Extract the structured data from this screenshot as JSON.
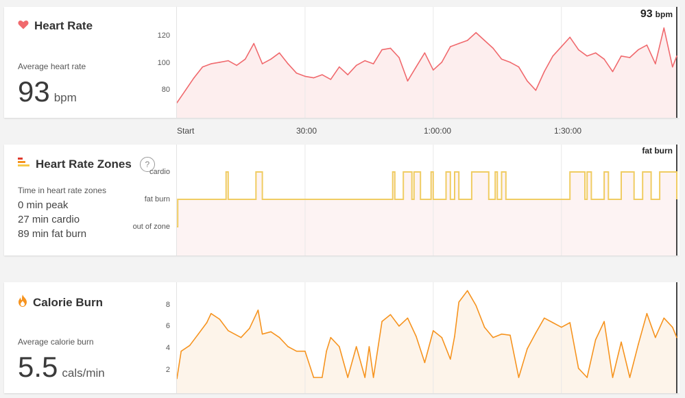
{
  "colors": {
    "heart": "#f0696d",
    "heart_fill": "#fdeeee",
    "zone_line": "#f0cc62",
    "zone_fill": "#fdf3f3",
    "calorie": "#f6931e",
    "calorie_fill": "#fdf4ea",
    "cursor": "#444444"
  },
  "heart_rate": {
    "title": "Heart Rate",
    "icon": "heart-icon",
    "avg_label": "Average heart rate",
    "avg_value": "93",
    "avg_unit": "bpm",
    "readout_value": "93",
    "readout_unit": "bpm",
    "y_ticks": [
      "120",
      "100",
      "80"
    ]
  },
  "zones": {
    "title": "Heart Rate Zones",
    "icon": "zones-bars-icon",
    "help": "?",
    "time_label": "Time in heart rate zones",
    "lines": [
      "0 min peak",
      "27 min cardio",
      "89 min fat burn"
    ],
    "y_ticks": [
      "cardio",
      "fat burn",
      "out of zone"
    ],
    "readout": "fat burn"
  },
  "calories": {
    "title": "Calorie Burn",
    "icon": "flame-icon",
    "avg_label": "Average calorie burn",
    "avg_value": "5.5",
    "avg_unit": "cals/min",
    "y_ticks": [
      "8",
      "6",
      "4",
      "2"
    ]
  },
  "x_axis": {
    "ticks": [
      "Start",
      "30:00",
      "1:00:00",
      "1:30:00"
    ],
    "tick_minutes": [
      0,
      30,
      60,
      90
    ]
  },
  "chart_data": [
    {
      "type": "area",
      "ylabel": "",
      "x_unit": "minutes",
      "xlim": [
        0,
        117
      ],
      "ylim": [
        65,
        130
      ],
      "grid": true,
      "x": [
        0,
        2,
        4,
        6,
        8,
        10,
        12,
        14,
        16,
        18,
        20,
        22,
        24,
        26,
        28,
        30,
        32,
        34,
        36,
        38,
        40,
        42,
        44,
        46,
        48,
        50,
        52,
        54,
        56,
        58,
        60,
        62,
        64,
        66,
        68,
        70,
        72,
        74,
        76,
        78,
        80,
        82,
        84,
        86,
        88,
        90,
        92,
        94,
        96,
        98,
        100,
        102,
        104,
        106,
        108,
        110,
        112,
        114,
        116,
        117
      ],
      "y": [
        72,
        80,
        88,
        95,
        97,
        98,
        99,
        96,
        100,
        110,
        97,
        100,
        104,
        97,
        91,
        89,
        88,
        90,
        87,
        95,
        90,
        96,
        99,
        97,
        106,
        107,
        101,
        86,
        95,
        104,
        93,
        98,
        108,
        110,
        112,
        117,
        112,
        107,
        100,
        98,
        95,
        86,
        80,
        92,
        102,
        108,
        114,
        106,
        102,
        104,
        100,
        92,
        102,
        101,
        106,
        109,
        97,
        120,
        95,
        102
      ]
    },
    {
      "type": "line",
      "ylabel": "",
      "x_unit": "minutes",
      "xlim": [
        0,
        117
      ],
      "y_categories": [
        "out of zone",
        "fat burn",
        "cardio"
      ],
      "x": [
        0,
        0.2,
        11.5,
        12,
        18.5,
        20,
        50.5,
        51,
        53,
        55,
        55.5,
        57,
        59.5,
        60,
        63,
        64,
        65,
        66,
        69,
        73,
        74.5,
        75,
        76,
        77,
        92,
        95.5,
        96,
        97,
        100,
        101,
        104,
        107,
        109,
        111,
        113,
        117
      ],
      "y": [
        0,
        1,
        2,
        1,
        2,
        1,
        2,
        1,
        2,
        1,
        2,
        1,
        2,
        1,
        2,
        1,
        2,
        1,
        2,
        1,
        2,
        1,
        2,
        1,
        2,
        1,
        2,
        1,
        2,
        1,
        2,
        1,
        2,
        1,
        2,
        1
      ]
    },
    {
      "type": "area",
      "ylabel": "",
      "x_unit": "minutes",
      "xlim": [
        0,
        117
      ],
      "ylim": [
        0.8,
        9.8
      ],
      "grid": true,
      "x": [
        0,
        1,
        3,
        5,
        7,
        8,
        10,
        12,
        15,
        17,
        19,
        20,
        22,
        24,
        26,
        28,
        30,
        32,
        34,
        35,
        36,
        38,
        40,
        42,
        44,
        45,
        46,
        48,
        50,
        52,
        54,
        56,
        58,
        60,
        62,
        64,
        65,
        66,
        68,
        70,
        72,
        74,
        76,
        78,
        80,
        82,
        84,
        86,
        88,
        90,
        92,
        94,
        96,
        98,
        100,
        102,
        104,
        106,
        108,
        110,
        112,
        114,
        116,
        117
      ],
      "y": [
        1.6,
        4,
        4.5,
        5.5,
        6.5,
        7.3,
        6.8,
        5.8,
        5.2,
        6,
        7.6,
        5.5,
        5.7,
        5.2,
        4.4,
        4,
        4,
        1.7,
        1.7,
        4,
        5.2,
        4.4,
        1.7,
        4.4,
        1.7,
        4.4,
        1.7,
        6.6,
        7.2,
        6.2,
        6.9,
        5.3,
        3,
        5.8,
        5.2,
        3.3,
        5.3,
        8.3,
        9.3,
        8,
        6.1,
        5.2,
        5.5,
        5.4,
        1.7,
        4.2,
        5.6,
        6.9,
        6.5,
        6.1,
        6.5,
        2.5,
        1.7,
        5,
        6.6,
        1.7,
        4.8,
        1.7,
        4.6,
        7.3,
        5.2,
        6.9,
        6.1,
        5.2
      ]
    }
  ]
}
